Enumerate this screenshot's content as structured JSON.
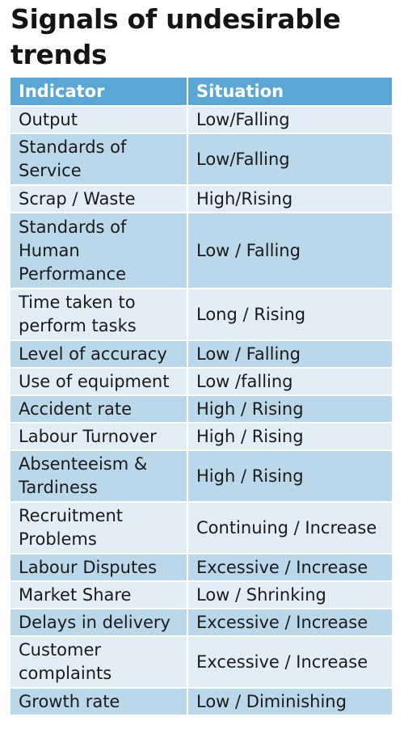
{
  "title": "Signals of undesirable trends",
  "table": {
    "headers": [
      "Indicator",
      "Situation"
    ],
    "rows": [
      {
        "indicator": "Output",
        "situation": "Low/Falling",
        "h": 34
      },
      {
        "indicator": "Standards of Service",
        "situation": "Low/Falling",
        "h": 64
      },
      {
        "indicator": "Scrap / Waste",
        "situation": "High/Rising",
        "h": 34
      },
      {
        "indicator": "Standards of Human Performance",
        "situation": "Low / Falling",
        "h": 94
      },
      {
        "indicator": "Time taken to perform tasks",
        "situation": "Long / Rising",
        "h": 64
      },
      {
        "indicator": "Level of accuracy",
        "situation": "Low / Falling",
        "h": 34
      },
      {
        "indicator": "Use of equipment",
        "situation": "Low /falling",
        "h": 34
      },
      {
        "indicator": "Accident rate",
        "situation": "High / Rising",
        "h": 34
      },
      {
        "indicator": "Labour Turnover",
        "situation": "High / Rising",
        "h": 34
      },
      {
        "indicator": "Absenteeism & Tardiness",
        "situation": "High / Rising",
        "h": 64
      },
      {
        "indicator": "Recruitment Problems",
        "situation": "Continuing / Increase",
        "h": 64
      },
      {
        "indicator": "Labour Disputes",
        "situation": "Excessive / Increase",
        "h": 34
      },
      {
        "indicator": "Market Share",
        "situation": "Low / Shrinking",
        "h": 34
      },
      {
        "indicator": "Delays in delivery",
        "situation": "Excessive / Increase",
        "h": 34
      },
      {
        "indicator": "Customer complaints",
        "situation": "Excessive / Increase",
        "h": 64
      },
      {
        "indicator": "Growth rate",
        "situation": "Low / Diminishing",
        "h": 34
      }
    ]
  },
  "colors": {
    "header_bg": "#5aa6d4",
    "row_light": "#e2eef7",
    "row_dark": "#bad8ea",
    "title_text": "#151515"
  }
}
